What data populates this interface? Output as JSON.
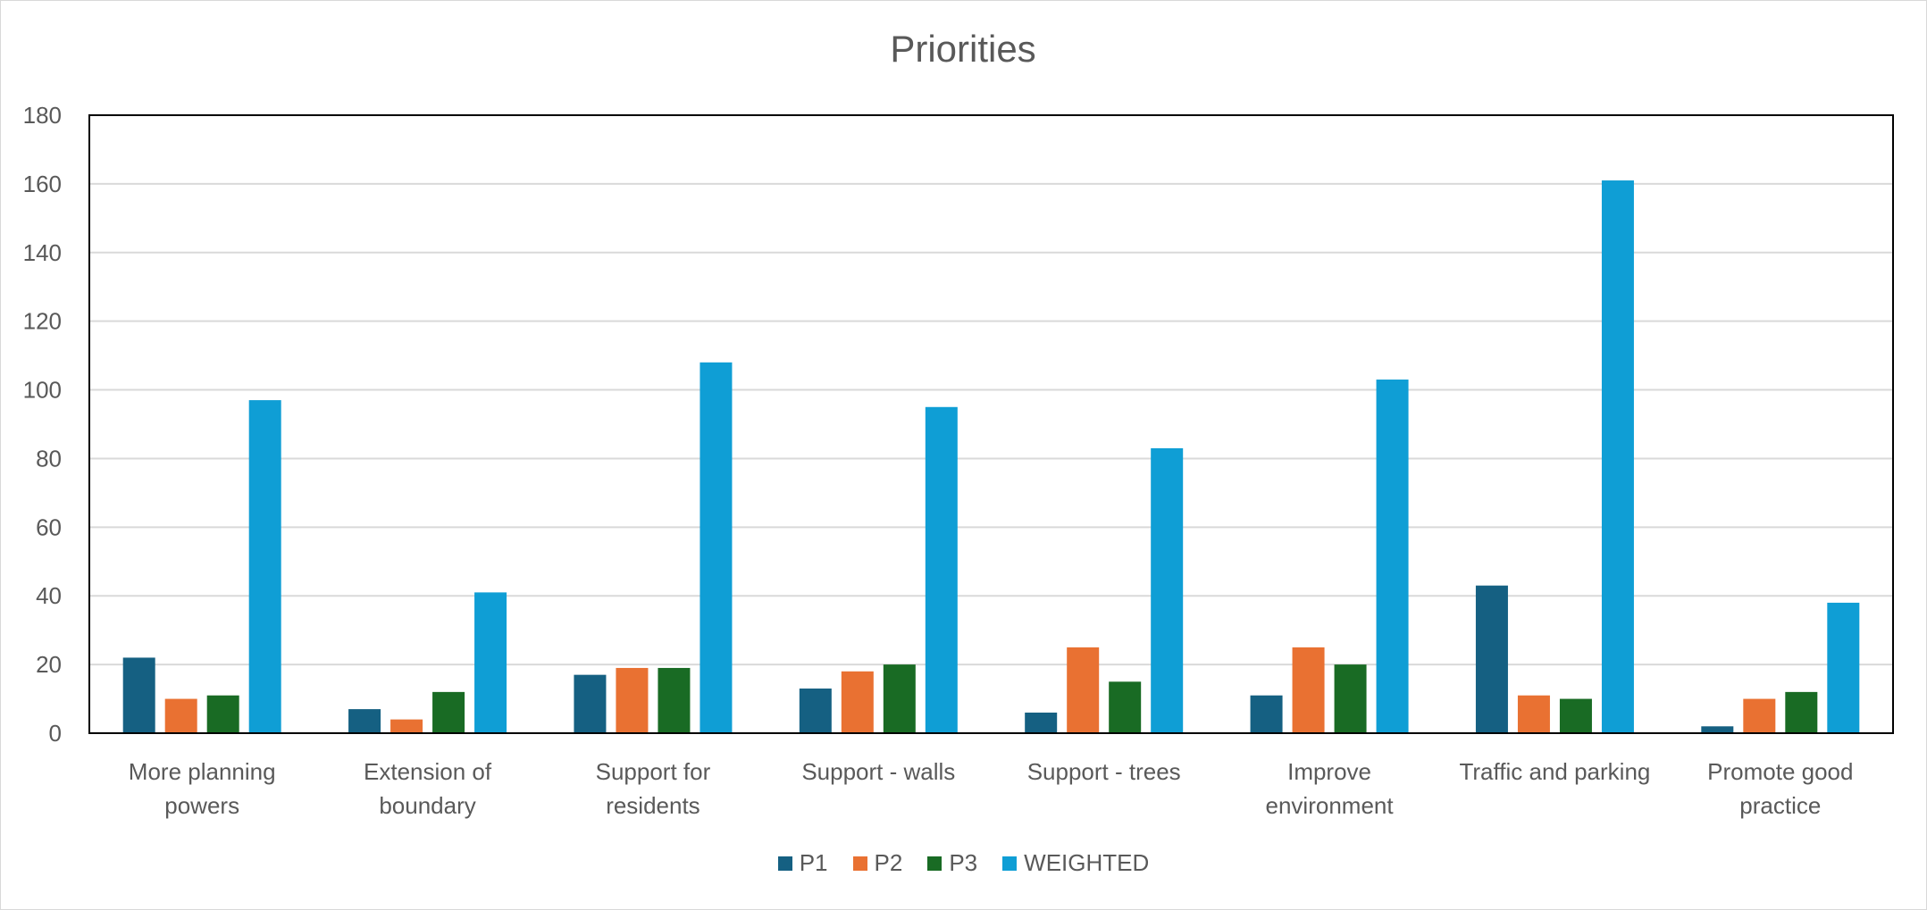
{
  "chart_data": {
    "type": "bar",
    "title": "Priorities",
    "xlabel": "",
    "ylabel": "",
    "ylim": [
      0,
      180
    ],
    "yticks": [
      0,
      20,
      40,
      60,
      80,
      100,
      120,
      140,
      160,
      180
    ],
    "grid": true,
    "legend_position": "bottom",
    "categories": [
      [
        "More planning",
        "powers"
      ],
      [
        "Extension of",
        "boundary"
      ],
      [
        "Support for",
        "residents"
      ],
      [
        "Support - walls"
      ],
      [
        "Support - trees"
      ],
      [
        "Improve",
        "environment"
      ],
      [
        "Traffic and parking"
      ],
      [
        "Promote good",
        "practice"
      ]
    ],
    "series": [
      {
        "name": "P1",
        "color": "#156082",
        "values": [
          22,
          7,
          17,
          13,
          6,
          11,
          43,
          2
        ]
      },
      {
        "name": "P2",
        "color": "#E97132",
        "values": [
          10,
          4,
          19,
          18,
          25,
          25,
          11,
          10
        ]
      },
      {
        "name": "P3",
        "color": "#196B24",
        "values": [
          11,
          12,
          19,
          20,
          15,
          20,
          10,
          12
        ]
      },
      {
        "name": "WEIGHTED",
        "color": "#0F9ED5",
        "values": [
          97,
          41,
          108,
          95,
          83,
          103,
          161,
          38
        ]
      }
    ]
  }
}
